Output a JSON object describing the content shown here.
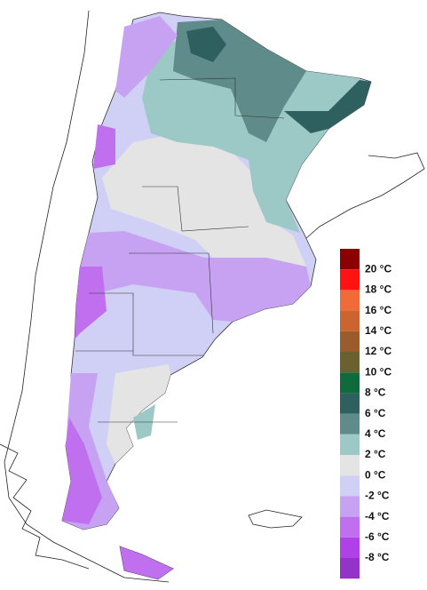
{
  "legend": {
    "colors": [
      "#8b0000",
      "#ff1212",
      "#f06a3a",
      "#cc6430",
      "#9a5c2c",
      "#6a6030",
      "#0f6b3c",
      "#2f6060",
      "#5f8c8a",
      "#9cc8c6",
      "#e4e4e4",
      "#d0d0f6",
      "#c8a2f2",
      "#c070ee",
      "#b040e8",
      "#9433c8"
    ],
    "labels": [
      "20 °C",
      "18 °C",
      "16 °C",
      "14 °C",
      "12 °C",
      "10 °C",
      "8 °C",
      "6 °C",
      "4 °C",
      "2 °C",
      "0 °C",
      "-2 °C",
      "-4 °C",
      "-6 °C",
      "-8 °C"
    ]
  }
}
